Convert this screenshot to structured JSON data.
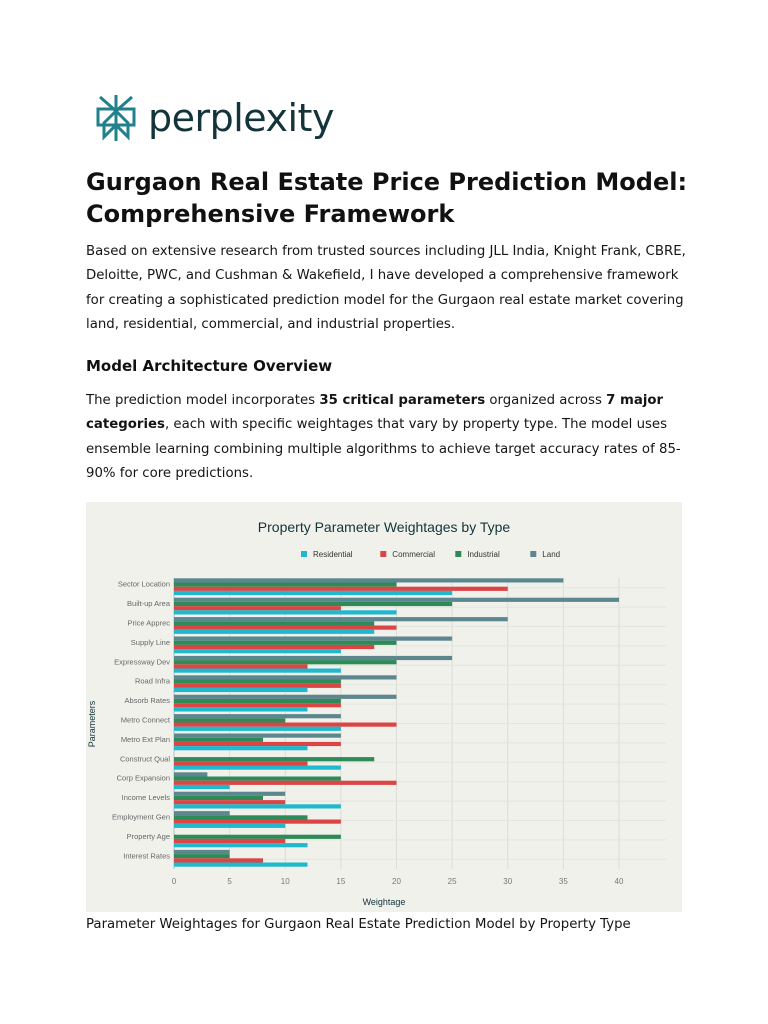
{
  "logo": {
    "text": "perplexity"
  },
  "title": "Gurgaon Real Estate Price Prediction Model: Comprehensive Framework",
  "intro": "Based on extensive research from trusted sources including JLL India, Knight Frank, CBRE, Deloitte, PWC, and Cushman & Wakefield, I have developed a comprehensive framework for creating a sophisticated prediction model for the Gurgaon real estate market covering land, residential, commercial, and industrial properties.",
  "section": {
    "heading": "Model Architecture Overview",
    "p_a": "The prediction model incorporates ",
    "b1": "35 critical parameters",
    "p_b": " organized across ",
    "b2": "7 major categories",
    "p_c": ", each with specific weightages that vary by property type. The model uses ensemble learning combining multiple algorithms to achieve target accuracy rates of 85-90% for core predictions."
  },
  "caption": "Parameter Weightages for Gurgaon Real Estate Prediction Model by Property Type",
  "chart_data": {
    "type": "bar",
    "orientation": "horizontal",
    "title": "Property Parameter Weightages by Type",
    "xlabel": "Weightage",
    "ylabel": "Parameters",
    "xlim": [
      0,
      42
    ],
    "xticks": [
      0,
      5,
      10,
      15,
      20,
      25,
      30,
      35,
      40
    ],
    "grid": true,
    "legend": "top-center",
    "categories": [
      "Sector Location",
      "Built-up Area",
      "Price Apprec",
      "Supply Line",
      "Expressway Dev",
      "Road Infra",
      "Absorb Rates",
      "Metro Connect",
      "Metro Ext Plan",
      "Construct Qual",
      "Corp Expansion",
      "Income Levels",
      "Employment Gen",
      "Property Age",
      "Interest Rates"
    ],
    "series": [
      {
        "name": "Residential",
        "color": "#1fb8cd",
        "values": [
          25,
          20,
          18,
          15,
          15,
          12,
          12,
          15,
          12,
          15,
          5,
          15,
          10,
          12,
          12
        ]
      },
      {
        "name": "Commercial",
        "color": "#db4545",
        "values": [
          30,
          15,
          20,
          18,
          12,
          15,
          15,
          20,
          15,
          12,
          20,
          10,
          15,
          10,
          8
        ]
      },
      {
        "name": "Industrial",
        "color": "#2e8b57",
        "values": [
          20,
          25,
          18,
          20,
          20,
          15,
          15,
          10,
          8,
          18,
          15,
          8,
          12,
          15,
          5
        ]
      },
      {
        "name": "Land",
        "color": "#5d878f",
        "values": [
          35,
          40,
          30,
          25,
          25,
          20,
          20,
          15,
          15,
          0,
          3,
          10,
          5,
          0,
          5
        ]
      }
    ]
  }
}
